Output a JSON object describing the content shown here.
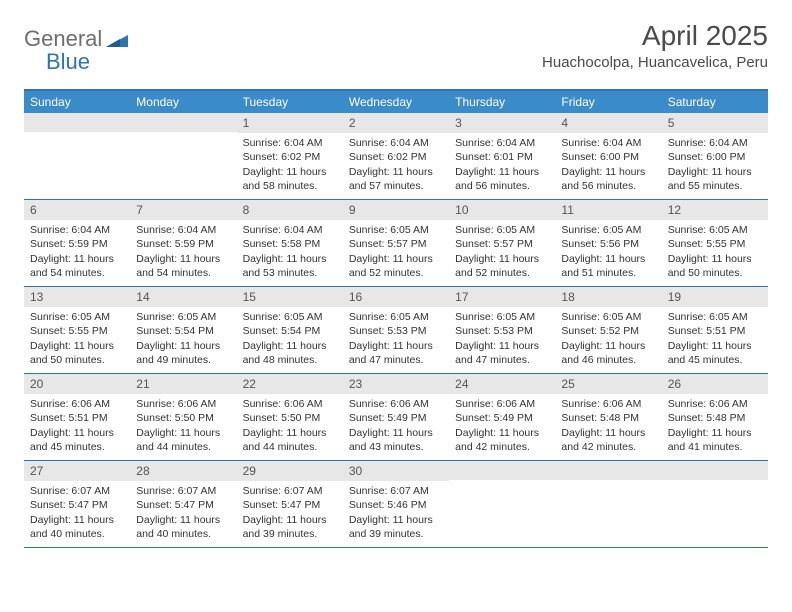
{
  "logo": {
    "part1": "General",
    "part2": "Blue"
  },
  "title": "April 2025",
  "location": "Huachocolpa, Huancavelica, Peru",
  "colors": {
    "header_bg": "#3a8bc9",
    "border": "#2d74b6",
    "daynum_bg": "#e7e7e7",
    "text": "#333333",
    "logo_gray": "#6e6e6e",
    "logo_blue": "#2d74b6"
  },
  "weekdays": [
    "Sunday",
    "Monday",
    "Tuesday",
    "Wednesday",
    "Thursday",
    "Friday",
    "Saturday"
  ],
  "weeks": [
    [
      {
        "n": "",
        "sr": "",
        "ss": "",
        "dl": ""
      },
      {
        "n": "",
        "sr": "",
        "ss": "",
        "dl": ""
      },
      {
        "n": "1",
        "sr": "Sunrise: 6:04 AM",
        "ss": "Sunset: 6:02 PM",
        "dl": "Daylight: 11 hours and 58 minutes."
      },
      {
        "n": "2",
        "sr": "Sunrise: 6:04 AM",
        "ss": "Sunset: 6:02 PM",
        "dl": "Daylight: 11 hours and 57 minutes."
      },
      {
        "n": "3",
        "sr": "Sunrise: 6:04 AM",
        "ss": "Sunset: 6:01 PM",
        "dl": "Daylight: 11 hours and 56 minutes."
      },
      {
        "n": "4",
        "sr": "Sunrise: 6:04 AM",
        "ss": "Sunset: 6:00 PM",
        "dl": "Daylight: 11 hours and 56 minutes."
      },
      {
        "n": "5",
        "sr": "Sunrise: 6:04 AM",
        "ss": "Sunset: 6:00 PM",
        "dl": "Daylight: 11 hours and 55 minutes."
      }
    ],
    [
      {
        "n": "6",
        "sr": "Sunrise: 6:04 AM",
        "ss": "Sunset: 5:59 PM",
        "dl": "Daylight: 11 hours and 54 minutes."
      },
      {
        "n": "7",
        "sr": "Sunrise: 6:04 AM",
        "ss": "Sunset: 5:59 PM",
        "dl": "Daylight: 11 hours and 54 minutes."
      },
      {
        "n": "8",
        "sr": "Sunrise: 6:04 AM",
        "ss": "Sunset: 5:58 PM",
        "dl": "Daylight: 11 hours and 53 minutes."
      },
      {
        "n": "9",
        "sr": "Sunrise: 6:05 AM",
        "ss": "Sunset: 5:57 PM",
        "dl": "Daylight: 11 hours and 52 minutes."
      },
      {
        "n": "10",
        "sr": "Sunrise: 6:05 AM",
        "ss": "Sunset: 5:57 PM",
        "dl": "Daylight: 11 hours and 52 minutes."
      },
      {
        "n": "11",
        "sr": "Sunrise: 6:05 AM",
        "ss": "Sunset: 5:56 PM",
        "dl": "Daylight: 11 hours and 51 minutes."
      },
      {
        "n": "12",
        "sr": "Sunrise: 6:05 AM",
        "ss": "Sunset: 5:55 PM",
        "dl": "Daylight: 11 hours and 50 minutes."
      }
    ],
    [
      {
        "n": "13",
        "sr": "Sunrise: 6:05 AM",
        "ss": "Sunset: 5:55 PM",
        "dl": "Daylight: 11 hours and 50 minutes."
      },
      {
        "n": "14",
        "sr": "Sunrise: 6:05 AM",
        "ss": "Sunset: 5:54 PM",
        "dl": "Daylight: 11 hours and 49 minutes."
      },
      {
        "n": "15",
        "sr": "Sunrise: 6:05 AM",
        "ss": "Sunset: 5:54 PM",
        "dl": "Daylight: 11 hours and 48 minutes."
      },
      {
        "n": "16",
        "sr": "Sunrise: 6:05 AM",
        "ss": "Sunset: 5:53 PM",
        "dl": "Daylight: 11 hours and 47 minutes."
      },
      {
        "n": "17",
        "sr": "Sunrise: 6:05 AM",
        "ss": "Sunset: 5:53 PM",
        "dl": "Daylight: 11 hours and 47 minutes."
      },
      {
        "n": "18",
        "sr": "Sunrise: 6:05 AM",
        "ss": "Sunset: 5:52 PM",
        "dl": "Daylight: 11 hours and 46 minutes."
      },
      {
        "n": "19",
        "sr": "Sunrise: 6:05 AM",
        "ss": "Sunset: 5:51 PM",
        "dl": "Daylight: 11 hours and 45 minutes."
      }
    ],
    [
      {
        "n": "20",
        "sr": "Sunrise: 6:06 AM",
        "ss": "Sunset: 5:51 PM",
        "dl": "Daylight: 11 hours and 45 minutes."
      },
      {
        "n": "21",
        "sr": "Sunrise: 6:06 AM",
        "ss": "Sunset: 5:50 PM",
        "dl": "Daylight: 11 hours and 44 minutes."
      },
      {
        "n": "22",
        "sr": "Sunrise: 6:06 AM",
        "ss": "Sunset: 5:50 PM",
        "dl": "Daylight: 11 hours and 44 minutes."
      },
      {
        "n": "23",
        "sr": "Sunrise: 6:06 AM",
        "ss": "Sunset: 5:49 PM",
        "dl": "Daylight: 11 hours and 43 minutes."
      },
      {
        "n": "24",
        "sr": "Sunrise: 6:06 AM",
        "ss": "Sunset: 5:49 PM",
        "dl": "Daylight: 11 hours and 42 minutes."
      },
      {
        "n": "25",
        "sr": "Sunrise: 6:06 AM",
        "ss": "Sunset: 5:48 PM",
        "dl": "Daylight: 11 hours and 42 minutes."
      },
      {
        "n": "26",
        "sr": "Sunrise: 6:06 AM",
        "ss": "Sunset: 5:48 PM",
        "dl": "Daylight: 11 hours and 41 minutes."
      }
    ],
    [
      {
        "n": "27",
        "sr": "Sunrise: 6:07 AM",
        "ss": "Sunset: 5:47 PM",
        "dl": "Daylight: 11 hours and 40 minutes."
      },
      {
        "n": "28",
        "sr": "Sunrise: 6:07 AM",
        "ss": "Sunset: 5:47 PM",
        "dl": "Daylight: 11 hours and 40 minutes."
      },
      {
        "n": "29",
        "sr": "Sunrise: 6:07 AM",
        "ss": "Sunset: 5:47 PM",
        "dl": "Daylight: 11 hours and 39 minutes."
      },
      {
        "n": "30",
        "sr": "Sunrise: 6:07 AM",
        "ss": "Sunset: 5:46 PM",
        "dl": "Daylight: 11 hours and 39 minutes."
      },
      {
        "n": "",
        "sr": "",
        "ss": "",
        "dl": ""
      },
      {
        "n": "",
        "sr": "",
        "ss": "",
        "dl": ""
      },
      {
        "n": "",
        "sr": "",
        "ss": "",
        "dl": ""
      }
    ]
  ]
}
